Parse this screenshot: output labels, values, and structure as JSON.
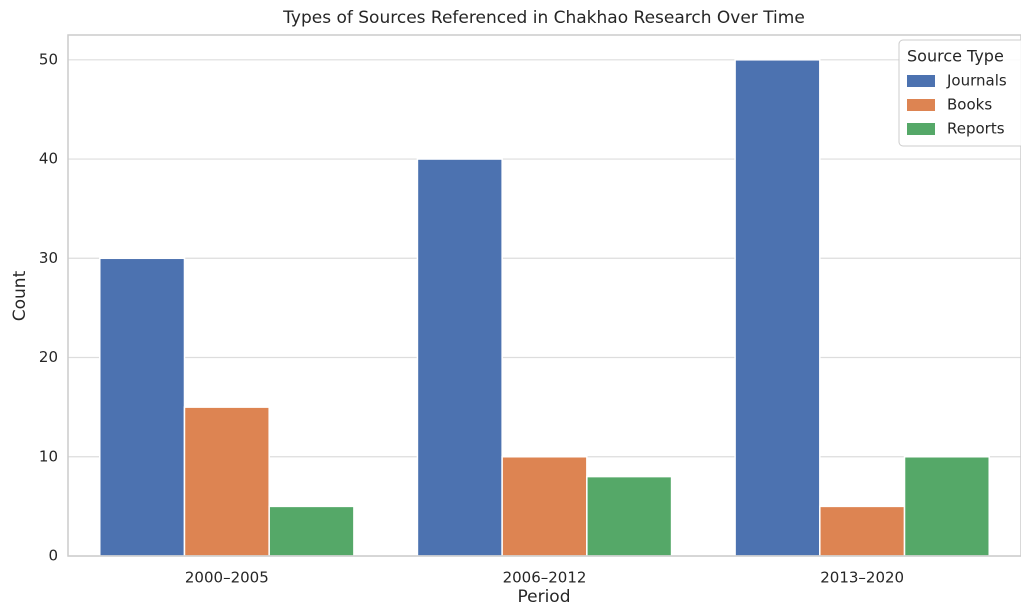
{
  "chart_data": {
    "type": "bar",
    "title": "Types of Sources Referenced in Chakhao Research Over Time",
    "x_label": "Period",
    "y_label": "Count",
    "categories": [
      "2000–2005",
      "2006–2012",
      "2013–2020"
    ],
    "series": [
      {
        "name": "Journals",
        "color": "#4c72b0",
        "values": [
          30,
          40,
          50
        ]
      },
      {
        "name": "Books",
        "color": "#dd8452",
        "values": [
          15,
          10,
          5
        ]
      },
      {
        "name": "Reports",
        "color": "#55a868",
        "values": [
          5,
          8,
          10
        ]
      }
    ],
    "ylim": [
      0,
      52.5
    ],
    "yticks": [
      0,
      10,
      20,
      30,
      40,
      50
    ],
    "grid": true,
    "legend_title": "Source Type",
    "legend_position": "upper right"
  }
}
